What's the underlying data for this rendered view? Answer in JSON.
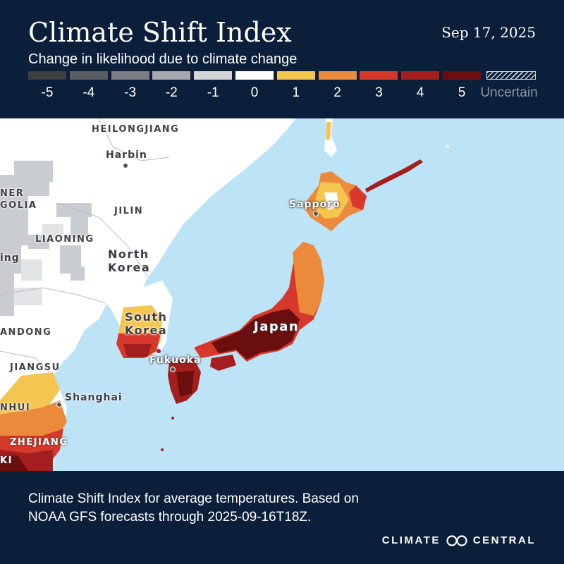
{
  "header": {
    "title": "Climate Shift Index",
    "date": "Sep 17, 2025",
    "subtitle": "Change in likelihood due to climate change"
  },
  "legend": {
    "items": [
      {
        "label": "-5",
        "color": "#3d3f42"
      },
      {
        "label": "-4",
        "color": "#5a5d61"
      },
      {
        "label": "-3",
        "color": "#7c8085"
      },
      {
        "label": "-2",
        "color": "#a6aaae"
      },
      {
        "label": "-1",
        "color": "#d3d5d7"
      },
      {
        "label": "0",
        "color": "#ffffff"
      },
      {
        "label": "1",
        "color": "#f4c54f"
      },
      {
        "label": "2",
        "color": "#ec8a3c"
      },
      {
        "label": "3",
        "color": "#d6392b"
      },
      {
        "label": "4",
        "color": "#a51e1e"
      },
      {
        "label": "5",
        "color": "#6b0e0e"
      }
    ],
    "uncertain_label": "Uncertain"
  },
  "map": {
    "labels": {
      "heilongjiang": "HEILONGJIANG",
      "harbin": "Harbin",
      "inner_mongolia": "NER\nGOLIA",
      "jilin": "JILIN",
      "liaoning": "LIAONING",
      "beijing": "ing",
      "north_korea": "North\nKorea",
      "south_korea": "South\nKorea",
      "shandong": "ANDONG",
      "jiangsu": "JIANGSU",
      "shanghai": "Shanghai",
      "anhui": "NHUI",
      "zhejiang": "ZHEJIANG",
      "fujian": "KI",
      "fukuoka": "Fukuoka",
      "japan": "Japan",
      "sapporo": "Sapporo"
    },
    "colors": {
      "ocean": "#bde3f7",
      "land": "#ffffff"
    }
  },
  "footer": {
    "caption": "Climate Shift Index for average temperatures. Based on NOAA GFS forecasts through 2025-09-16T18Z.",
    "brand_left": "CLIMATE",
    "brand_right": "CENTRAL",
    "logo_icon": "climate-central-logo-icon"
  }
}
